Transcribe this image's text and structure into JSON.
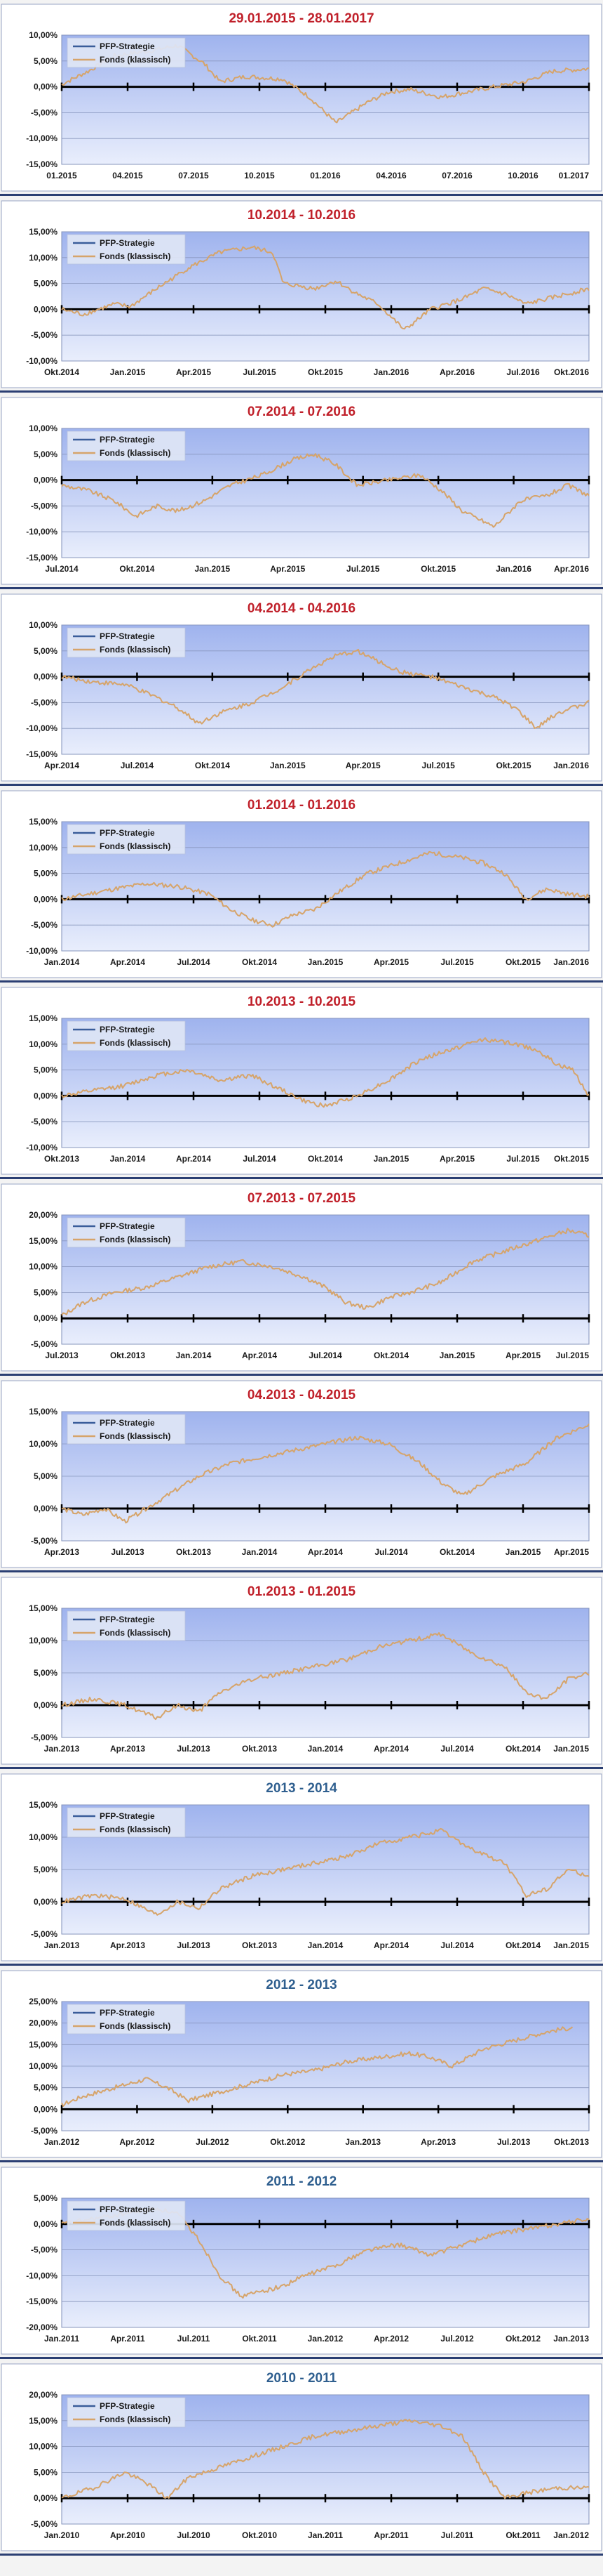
{
  "colors": {
    "title_red": "#c0202a",
    "title_blue": "#2f5f8f",
    "line_orange": "#d6a46a",
    "line_blue": "#3a5d9a",
    "separator": "#2b3f73",
    "axis_black": "#000000",
    "plot_top": "#9fb3ee",
    "plot_bottom": "#e9eefc"
  },
  "legend": {
    "series1": "PFP-Strategie",
    "series2": "Fonds (klassisch)"
  },
  "chart_data": [
    {
      "type": "line",
      "title": "29.01.2015 - 28.01.2017",
      "title_color": "red",
      "ylim": [
        -15,
        10
      ],
      "yticks": [
        10,
        5,
        0,
        -5,
        -10,
        -15
      ],
      "yticklabels": [
        "10,00%",
        "5,00%",
        "0,00%",
        "-5,00%",
        "-10,00%",
        "-15,00%"
      ],
      "xticklabels": [
        "01.2015",
        "04.2015",
        "07.2015",
        "10.2015",
        "01.2016",
        "04.2016",
        "07.2016",
        "10.2016",
        "01.2017"
      ],
      "series": [
        {
          "name": "Fonds (klassisch)",
          "x": [
            0,
            0.05,
            0.1,
            0.17,
            0.22,
            0.27,
            0.3,
            0.35,
            0.42,
            0.47,
            0.5,
            0.52,
            0.55,
            0.58,
            0.62,
            0.66,
            0.72,
            0.77,
            0.82,
            0.88,
            0.93,
            1
          ],
          "values": [
            0.5,
            3,
            6,
            7,
            8,
            4.5,
            1,
            2,
            1.5,
            -2,
            -5,
            -7,
            -5,
            -3,
            -1,
            -0.5,
            -2,
            -1,
            0,
            1,
            3,
            3.5
          ]
        }
      ]
    },
    {
      "type": "line",
      "title": "10.2014 - 10.2016",
      "title_color": "red",
      "ylim": [
        -10,
        15
      ],
      "yticks": [
        15,
        10,
        5,
        0,
        -5,
        -10
      ],
      "yticklabels": [
        "15,00%",
        "10,00%",
        "5,00%",
        "0,00%",
        "-5,00%",
        "-10,00%"
      ],
      "xticklabels": [
        "Okt.2014",
        "Jan.2015",
        "Apr.2015",
        "Jul.2015",
        "Okt.2015",
        "Jan.2016",
        "Apr.2016",
        "Jul.2016",
        "Okt.2016"
      ],
      "series": [
        {
          "name": "Fonds (klassisch)",
          "x": [
            0,
            0.04,
            0.1,
            0.13,
            0.18,
            0.24,
            0.3,
            0.36,
            0.4,
            0.42,
            0.48,
            0.52,
            0.56,
            0.6,
            0.63,
            0.65,
            0.7,
            0.76,
            0.8,
            0.84,
            0.88,
            0.92,
            1
          ],
          "values": [
            0,
            -1,
            1,
            0.5,
            4,
            8,
            11,
            12,
            11,
            5,
            4,
            5.5,
            3,
            1,
            -2,
            -4,
            0,
            2,
            4,
            3,
            1,
            2,
            4
          ]
        }
      ]
    },
    {
      "type": "line",
      "title": "07.2014 - 07.2016",
      "title_color": "red",
      "ylim": [
        -15,
        10
      ],
      "yticks": [
        10,
        5,
        0,
        -5,
        -10,
        -15
      ],
      "yticklabels": [
        "10,00%",
        "5,00%",
        "0,00%",
        "-5,00%",
        "-10,00%",
        "-15,00%"
      ],
      "xticklabels": [
        "Jul.2014",
        "Okt.2014",
        "Jan.2015",
        "Apr.2015",
        "Jul.2015",
        "Okt.2015",
        "Jan.2016",
        "Apr.2016"
      ],
      "series": [
        {
          "name": "Fonds (klassisch)",
          "x": [
            0,
            0.05,
            0.1,
            0.14,
            0.18,
            0.22,
            0.27,
            0.32,
            0.38,
            0.44,
            0.48,
            0.52,
            0.56,
            0.62,
            0.68,
            0.72,
            0.76,
            0.82,
            0.87,
            0.92,
            0.96,
            1
          ],
          "values": [
            -1,
            -2,
            -4,
            -7,
            -5,
            -6,
            -4,
            -1,
            1,
            4,
            5,
            3,
            -1,
            0,
            1,
            -2,
            -6,
            -9,
            -4,
            -3,
            -1,
            -3
          ]
        }
      ]
    },
    {
      "type": "line",
      "title": "04.2014 - 04.2016",
      "title_color": "red",
      "ylim": [
        -15,
        10
      ],
      "yticks": [
        10,
        5,
        0,
        -5,
        -10,
        -15
      ],
      "yticklabels": [
        "10,00%",
        "5,00%",
        "0,00%",
        "-5,00%",
        "-10,00%",
        "-15,00%"
      ],
      "xticklabels": [
        "Apr.2014",
        "Jul.2014",
        "Okt.2014",
        "Jan.2015",
        "Apr.2015",
        "Jul.2015",
        "Okt.2015",
        "Jan.2016"
      ],
      "series": [
        {
          "name": "Fonds (klassisch)",
          "x": [
            0,
            0.06,
            0.12,
            0.18,
            0.22,
            0.26,
            0.3,
            0.36,
            0.42,
            0.48,
            0.52,
            0.56,
            0.6,
            0.64,
            0.7,
            0.76,
            0.82,
            0.86,
            0.9,
            0.94,
            1
          ],
          "values": [
            0,
            -1,
            -1.5,
            -4,
            -6,
            -9,
            -7,
            -5,
            -2,
            2,
            4,
            5,
            3,
            1,
            0,
            -2,
            -4,
            -6,
            -10,
            -7,
            -5
          ]
        }
      ]
    },
    {
      "type": "line",
      "title": "01.2014 - 01.2016",
      "title_color": "red",
      "ylim": [
        -10,
        15
      ],
      "yticks": [
        15,
        10,
        5,
        0,
        -5,
        -10
      ],
      "yticklabels": [
        "15,00%",
        "10,00%",
        "5,00%",
        "0,00%",
        "-5,00%",
        "-10,00%"
      ],
      "xticklabels": [
        "Jan.2014",
        "Apr.2014",
        "Jul.2014",
        "Okt.2014",
        "Jan.2015",
        "Apr.2015",
        "Jul.2015",
        "Okt.2015",
        "Jan.2016"
      ],
      "series": [
        {
          "name": "Fonds (klassisch)",
          "x": [
            0,
            0.05,
            0.1,
            0.16,
            0.22,
            0.28,
            0.32,
            0.36,
            0.4,
            0.44,
            0.48,
            0.52,
            0.58,
            0.64,
            0.7,
            0.76,
            0.8,
            0.84,
            0.88,
            0.92,
            0.96,
            1
          ],
          "values": [
            0,
            1,
            2,
            3,
            2.5,
            1,
            -2,
            -4,
            -5,
            -3,
            -2,
            1,
            5,
            7,
            9,
            8,
            7,
            5,
            0,
            2,
            1,
            0.5
          ]
        }
      ]
    },
    {
      "type": "line",
      "title": "10.2013 - 10.2015",
      "title_color": "red",
      "ylim": [
        -10,
        15
      ],
      "yticks": [
        15,
        10,
        5,
        0,
        -5,
        -10
      ],
      "yticklabels": [
        "15,00%",
        "10,00%",
        "5,00%",
        "0,00%",
        "-5,00%",
        "-10,00%"
      ],
      "xticklabels": [
        "Okt.2013",
        "Jan.2014",
        "Apr.2014",
        "Jul.2014",
        "Okt.2014",
        "Jan.2015",
        "Apr.2015",
        "Jul.2015",
        "Okt.2015"
      ],
      "series": [
        {
          "name": "Fonds (klassisch)",
          "x": [
            0,
            0.06,
            0.12,
            0.18,
            0.24,
            0.3,
            0.36,
            0.42,
            0.46,
            0.5,
            0.56,
            0.62,
            0.68,
            0.74,
            0.8,
            0.86,
            0.9,
            0.94,
            0.97,
            1
          ],
          "values": [
            0,
            1,
            2,
            4,
            5,
            3,
            4,
            1,
            -1,
            -2,
            0,
            3,
            7,
            9,
            11,
            10,
            9,
            6,
            5,
            0
          ]
        }
      ]
    },
    {
      "type": "line",
      "title": "07.2013 - 07.2015",
      "title_color": "red",
      "ylim": [
        -5,
        20
      ],
      "yticks": [
        20,
        15,
        10,
        5,
        0,
        -5
      ],
      "yticklabels": [
        "20,00%",
        "15,00%",
        "10,00%",
        "5,00%",
        "0,00%",
        "-5,00%"
      ],
      "xticklabels": [
        "Jul.2013",
        "Okt.2013",
        "Jan.2014",
        "Apr.2014",
        "Jul.2014",
        "Okt.2014",
        "Jan.2015",
        "Apr.2015",
        "Jul.2015"
      ],
      "series": [
        {
          "name": "Fonds (klassisch)",
          "x": [
            0,
            0.04,
            0.1,
            0.16,
            0.22,
            0.28,
            0.34,
            0.4,
            0.46,
            0.5,
            0.54,
            0.58,
            0.62,
            0.66,
            0.72,
            0.78,
            0.84,
            0.9,
            0.96,
            1
          ],
          "values": [
            0.5,
            3,
            5,
            6,
            8,
            10,
            11,
            10,
            8,
            6,
            3,
            2,
            4,
            5,
            7,
            11,
            13,
            15,
            17,
            16
          ]
        }
      ]
    },
    {
      "type": "line",
      "title": "04.2013 - 04.2015",
      "title_color": "red",
      "ylim": [
        -5,
        15
      ],
      "yticks": [
        15,
        10,
        5,
        0,
        -5
      ],
      "yticklabels": [
        "15,00%",
        "10,00%",
        "5,00%",
        "0,00%",
        "-5,00%"
      ],
      "xticklabels": [
        "Apr.2013",
        "Jul.2013",
        "Okt.2013",
        "Jan.2014",
        "Apr.2014",
        "Jul.2014",
        "Okt.2014",
        "Jan.2015",
        "Apr.2015"
      ],
      "series": [
        {
          "name": "Fonds (klassisch)",
          "x": [
            0,
            0.04,
            0.08,
            0.12,
            0.16,
            0.2,
            0.26,
            0.32,
            0.38,
            0.44,
            0.5,
            0.56,
            0.62,
            0.68,
            0.72,
            0.76,
            0.82,
            0.88,
            0.94,
            1
          ],
          "values": [
            0,
            -1,
            0,
            -2,
            0,
            2,
            5,
            7,
            8,
            9,
            10,
            11,
            10,
            7,
            4,
            2,
            5,
            7,
            11,
            13
          ]
        }
      ]
    },
    {
      "type": "line",
      "title": "01.2013 - 01.2015",
      "title_color": "red",
      "ylim": [
        -5,
        15
      ],
      "yticks": [
        15,
        10,
        5,
        0,
        -5
      ],
      "yticklabels": [
        "15,00%",
        "10,00%",
        "5,00%",
        "0,00%",
        "-5,00%"
      ],
      "xticklabels": [
        "Jan.2013",
        "Apr.2013",
        "Jul.2013",
        "Okt.2013",
        "Jan.2014",
        "Apr.2014",
        "Jul.2014",
        "Okt.2014",
        "Jan.2015"
      ],
      "series": [
        {
          "name": "Fonds (klassisch)",
          "x": [
            0,
            0.06,
            0.12,
            0.18,
            0.22,
            0.26,
            0.3,
            0.36,
            0.42,
            0.48,
            0.54,
            0.6,
            0.66,
            0.72,
            0.78,
            0.84,
            0.88,
            0.92,
            0.96,
            1
          ],
          "values": [
            0,
            1,
            0,
            -2,
            0,
            -1,
            2,
            4,
            5,
            6,
            7,
            9,
            10,
            11,
            8,
            6,
            2,
            1,
            4,
            5
          ]
        }
      ]
    },
    {
      "type": "line",
      "title": "2013 - 2014",
      "title_color": "blue",
      "ylim": [
        -5,
        15
      ],
      "yticks": [
        15,
        10,
        5,
        0,
        -5
      ],
      "yticklabels": [
        "15,00%",
        "10,00%",
        "5,00%",
        "0,00%",
        "-5,00%"
      ],
      "xticklabels": [
        "Jan.2013",
        "Apr.2013",
        "Jul.2013",
        "Okt.2013",
        "Jan.2014",
        "Apr.2014",
        "Jul.2014",
        "Okt.2014",
        "Jan.2015"
      ],
      "series": [
        {
          "name": "Fonds (klassisch)",
          "x": [
            0,
            0.06,
            0.12,
            0.18,
            0.22,
            0.26,
            0.3,
            0.36,
            0.42,
            0.48,
            0.54,
            0.6,
            0.66,
            0.72,
            0.78,
            0.84,
            0.88,
            0.92,
            0.96,
            1
          ],
          "values": [
            0,
            1,
            0.5,
            -2,
            0,
            -1,
            2,
            4,
            5,
            6,
            7,
            9,
            10,
            11,
            8,
            6,
            1,
            2,
            5,
            4
          ]
        }
      ]
    },
    {
      "type": "line",
      "title": "2012 - 2013",
      "title_color": "blue",
      "ylim": [
        -5,
        25
      ],
      "yticks": [
        25,
        20,
        15,
        10,
        5,
        0,
        -5
      ],
      "yticklabels": [
        "25,00%",
        "20,00%",
        "15,00%",
        "10,00%",
        "5,00%",
        "0,00%",
        "-5,00%"
      ],
      "xticklabels": [
        "Jan.2012",
        "Apr.2012",
        "Jul.2012",
        "Okt.2012",
        "Jan.2013",
        "Apr.2013",
        "Jul.2013",
        "Okt.2013"
      ],
      "series": [
        {
          "name": "Fonds (klassisch)",
          "x": [
            0,
            0.04,
            0.1,
            0.16,
            0.2,
            0.24,
            0.3,
            0.36,
            0.42,
            0.48,
            0.54,
            0.6,
            0.66,
            0.7,
            0.74,
            0.8,
            0.86,
            0.92,
            0.97
          ],
          "values": [
            1,
            3,
            5,
            7,
            5,
            2,
            4,
            6,
            8,
            9,
            11,
            12,
            13,
            12,
            10,
            14,
            16,
            18,
            19
          ]
        }
      ]
    },
    {
      "type": "line",
      "title": "2011 - 2012",
      "title_color": "blue",
      "ylim": [
        -20,
        5
      ],
      "yticks": [
        5,
        0,
        -5,
        -10,
        -15,
        -20
      ],
      "yticklabels": [
        "5,00%",
        "0,00%",
        "-5,00%",
        "-10,00%",
        "-15,00%",
        "-20,00%"
      ],
      "xticklabels": [
        "Jan.2011",
        "Apr.2011",
        "Jul.2011",
        "Okt.2011",
        "Jan.2012",
        "Apr.2012",
        "Jul.2012",
        "Okt.2012",
        "Jan.2013"
      ],
      "series": [
        {
          "name": "Fonds (klassisch)",
          "x": [
            0,
            0.06,
            0.12,
            0.18,
            0.22,
            0.26,
            0.3,
            0.34,
            0.38,
            0.42,
            0.46,
            0.52,
            0.58,
            0.64,
            0.7,
            0.76,
            0.82,
            0.88,
            0.94,
            1
          ],
          "values": [
            0,
            1,
            2,
            3,
            2,
            -3,
            -10,
            -14,
            -13,
            -12,
            -10,
            -8,
            -5,
            -4,
            -6,
            -4,
            -2,
            -1,
            0,
            1
          ]
        }
      ]
    },
    {
      "type": "line",
      "title": "2010 - 2011",
      "title_color": "blue",
      "ylim": [
        -5,
        20
      ],
      "yticks": [
        20,
        15,
        10,
        5,
        0,
        -5
      ],
      "yticklabels": [
        "20,00%",
        "15,00%",
        "10,00%",
        "5,00%",
        "0,00%",
        "-5,00%"
      ],
      "xticklabels": [
        "Jan.2010",
        "Apr.2010",
        "Jul.2010",
        "Okt.2010",
        "Jan.2011",
        "Apr.2011",
        "Jul.2011",
        "Okt.2011",
        "Jan.2012"
      ],
      "series": [
        {
          "name": "Fonds (klassisch)",
          "x": [
            0,
            0.06,
            0.12,
            0.16,
            0.2,
            0.24,
            0.3,
            0.36,
            0.42,
            0.48,
            0.54,
            0.6,
            0.66,
            0.72,
            0.76,
            0.8,
            0.84,
            0.88,
            0.94,
            1
          ],
          "values": [
            0,
            2,
            5,
            3,
            0,
            4,
            6,
            8,
            10,
            12,
            13,
            14,
            15,
            14,
            12,
            5,
            0,
            1,
            2,
            2
          ]
        }
      ]
    }
  ]
}
